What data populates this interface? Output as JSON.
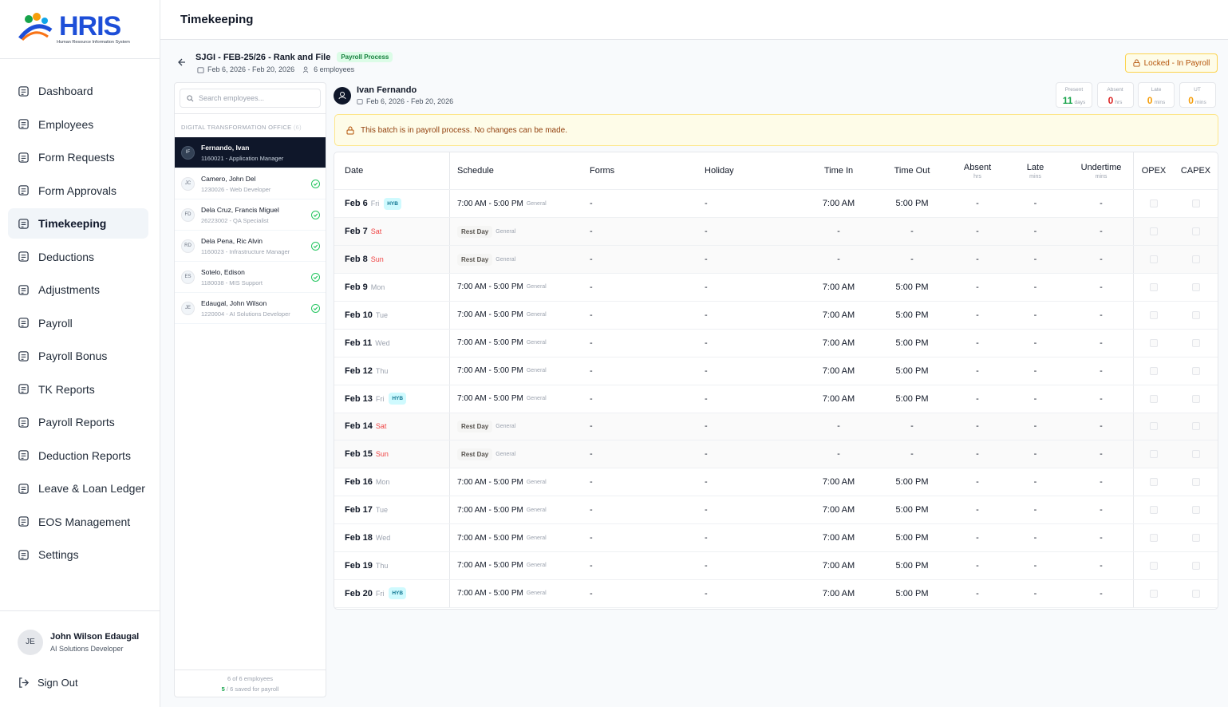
{
  "logo": {
    "title": "HRIS",
    "subtitle": "Human Resource Information System"
  },
  "nav": {
    "items": [
      "Dashboard",
      "Employees",
      "Form Requests",
      "Form Approvals",
      "Timekeeping",
      "Deductions",
      "Adjustments",
      "Payroll",
      "Payroll Bonus",
      "TK Reports",
      "Payroll Reports",
      "Deduction Reports",
      "Leave & Loan Ledger",
      "EOS Management",
      "Settings"
    ],
    "active": 4
  },
  "user": {
    "initials": "JE",
    "name": "John Wilson Edaugal",
    "role": "AI Solutions Developer",
    "sign_out": "Sign Out"
  },
  "header": {
    "title": "Timekeeping"
  },
  "batch": {
    "title": "SJGI - FEB-25/26 - Rank and File",
    "badge": "Payroll Process",
    "dates": "Feb 6, 2026 - Feb 20, 2026",
    "employees": "6 employees",
    "lock": "Locked - In Payroll"
  },
  "employee_list": {
    "search_placeholder": "Search employees...",
    "group": "DIGITAL TRANSFORMATION OFFICE",
    "group_count": "(6)",
    "selected": 0,
    "items": [
      {
        "initials": "IF",
        "name": "Fernando, Ivan",
        "info": "1160021 - Application Manager",
        "saved": false
      },
      {
        "initials": "JC",
        "name": "Camero, John Del",
        "info": "1230026 - Web Developer",
        "saved": true
      },
      {
        "initials": "FD",
        "name": "Dela Cruz, Francis Miguel",
        "info": "26223002 - QA Specialist",
        "saved": true
      },
      {
        "initials": "RD",
        "name": "Dela Pena, Ric Alvin",
        "info": "1160023 - Infrastructure Manager",
        "saved": true
      },
      {
        "initials": "ES",
        "name": "Sotelo, Edison",
        "info": "1180038 - MIS Support",
        "saved": true
      },
      {
        "initials": "JE",
        "name": "Edaugal, John Wilson",
        "info": "1220004 - AI Solutions Developer",
        "saved": true
      }
    ],
    "footer_count": "6 of 6 employees",
    "footer_saved": "5",
    "footer_saved_rest": "/ 6 saved for payroll"
  },
  "detail": {
    "name": "Ivan Fernando",
    "dates": "Feb 6, 2026 - Feb 20, 2026",
    "stats": [
      {
        "label": "Present",
        "value": 11,
        "unit": "days",
        "color": "#16a34a"
      },
      {
        "label": "Absent",
        "value": 0,
        "unit": "hrs",
        "color": "#dc2626"
      },
      {
        "label": "Late",
        "value": 0,
        "unit": "mins",
        "color": "#f59e0b"
      },
      {
        "label": "UT",
        "value": 0,
        "unit": "mins",
        "color": "#f59e0b"
      }
    ],
    "alert": "This batch is in payroll process. No changes can be made."
  },
  "table": {
    "columns": [
      {
        "label": "Date"
      },
      {
        "label": "Schedule"
      },
      {
        "label": "Forms"
      },
      {
        "label": "Holiday"
      },
      {
        "label": "Time In"
      },
      {
        "label": "Time Out"
      },
      {
        "label": "Absent",
        "unit": "hrs"
      },
      {
        "label": "Late",
        "unit": "mins"
      },
      {
        "label": "Undertime",
        "unit": "mins"
      },
      {
        "label": "OPEX"
      },
      {
        "label": "CAPEX"
      }
    ],
    "rows": [
      {
        "date": "Feb 6",
        "day": "Fri",
        "tag": "HYB",
        "schedule": "7:00 AM - 5:00 PM",
        "schedule_type": "General",
        "forms": "-",
        "holiday": "-",
        "time_in": "7:00 AM",
        "time_out": "5:00 PM",
        "absent": "-",
        "late": "-",
        "undertime": "-"
      },
      {
        "date": "Feb 7",
        "day": "Sat",
        "rest_day": true,
        "schedule": "Rest Day",
        "schedule_type": "General",
        "forms": "-",
        "holiday": "-",
        "time_in": "-",
        "time_out": "-",
        "absent": "-",
        "late": "-",
        "undertime": "-"
      },
      {
        "date": "Feb 8",
        "day": "Sun",
        "rest_day": true,
        "schedule": "Rest Day",
        "schedule_type": "General",
        "forms": "-",
        "holiday": "-",
        "time_in": "-",
        "time_out": "-",
        "absent": "-",
        "late": "-",
        "undertime": "-"
      },
      {
        "date": "Feb 9",
        "day": "Mon",
        "schedule": "7:00 AM - 5:00 PM",
        "schedule_type": "General",
        "forms": "-",
        "holiday": "-",
        "time_in": "7:00 AM",
        "time_out": "5:00 PM",
        "absent": "-",
        "late": "-",
        "undertime": "-"
      },
      {
        "date": "Feb 10",
        "day": "Tue",
        "schedule": "7:00 AM - 5:00 PM",
        "schedule_type": "General",
        "forms": "-",
        "holiday": "-",
        "time_in": "7:00 AM",
        "time_out": "5:00 PM",
        "absent": "-",
        "late": "-",
        "undertime": "-"
      },
      {
        "date": "Feb 11",
        "day": "Wed",
        "schedule": "7:00 AM - 5:00 PM",
        "schedule_type": "General",
        "forms": "-",
        "holiday": "-",
        "time_in": "7:00 AM",
        "time_out": "5:00 PM",
        "absent": "-",
        "late": "-",
        "undertime": "-"
      },
      {
        "date": "Feb 12",
        "day": "Thu",
        "schedule": "7:00 AM - 5:00 PM",
        "schedule_type": "General",
        "forms": "-",
        "holiday": "-",
        "time_in": "7:00 AM",
        "time_out": "5:00 PM",
        "absent": "-",
        "late": "-",
        "undertime": "-"
      },
      {
        "date": "Feb 13",
        "day": "Fri",
        "tag": "HYB",
        "schedule": "7:00 AM - 5:00 PM",
        "schedule_type": "General",
        "forms": "-",
        "holiday": "-",
        "time_in": "7:00 AM",
        "time_out": "5:00 PM",
        "absent": "-",
        "late": "-",
        "undertime": "-"
      },
      {
        "date": "Feb 14",
        "day": "Sat",
        "rest_day": true,
        "schedule": "Rest Day",
        "schedule_type": "General",
        "forms": "-",
        "holiday": "-",
        "time_in": "-",
        "time_out": "-",
        "absent": "-",
        "late": "-",
        "undertime": "-"
      },
      {
        "date": "Feb 15",
        "day": "Sun",
        "rest_day": true,
        "schedule": "Rest Day",
        "schedule_type": "General",
        "forms": "-",
        "holiday": "-",
        "time_in": "-",
        "time_out": "-",
        "absent": "-",
        "late": "-",
        "undertime": "-"
      },
      {
        "date": "Feb 16",
        "day": "Mon",
        "schedule": "7:00 AM - 5:00 PM",
        "schedule_type": "General",
        "forms": "-",
        "holiday": "-",
        "time_in": "7:00 AM",
        "time_out": "5:00 PM",
        "absent": "-",
        "late": "-",
        "undertime": "-"
      },
      {
        "date": "Feb 17",
        "day": "Tue",
        "schedule": "7:00 AM - 5:00 PM",
        "schedule_type": "General",
        "forms": "-",
        "holiday": "-",
        "time_in": "7:00 AM",
        "time_out": "5:00 PM",
        "absent": "-",
        "late": "-",
        "undertime": "-"
      },
      {
        "date": "Feb 18",
        "day": "Wed",
        "schedule": "7:00 AM - 5:00 PM",
        "schedule_type": "General",
        "forms": "-",
        "holiday": "-",
        "time_in": "7:00 AM",
        "time_out": "5:00 PM",
        "absent": "-",
        "late": "-",
        "undertime": "-"
      },
      {
        "date": "Feb 19",
        "day": "Thu",
        "schedule": "7:00 AM - 5:00 PM",
        "schedule_type": "General",
        "forms": "-",
        "holiday": "-",
        "time_in": "7:00 AM",
        "time_out": "5:00 PM",
        "absent": "-",
        "late": "-",
        "undertime": "-"
      },
      {
        "date": "Feb 20",
        "day": "Fri",
        "tag": "HYB",
        "schedule": "7:00 AM - 5:00 PM",
        "schedule_type": "General",
        "forms": "-",
        "holiday": "-",
        "time_in": "7:00 AM",
        "time_out": "5:00 PM",
        "absent": "-",
        "late": "-",
        "undertime": "-"
      }
    ]
  }
}
